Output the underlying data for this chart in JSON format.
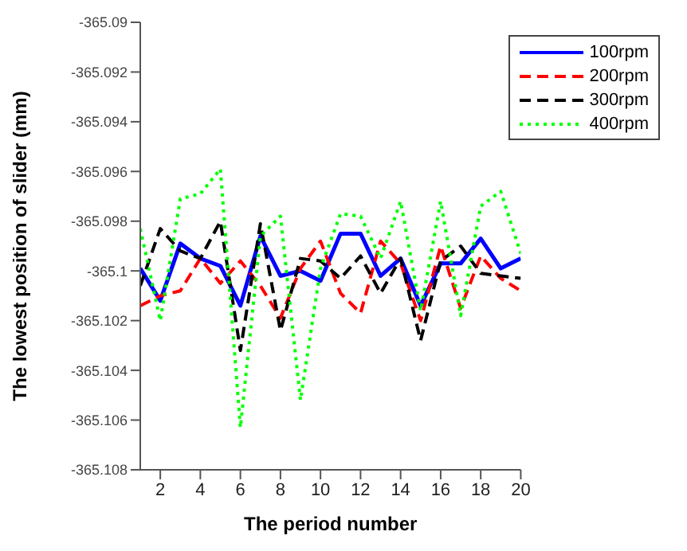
{
  "chart_data": {
    "type": "line",
    "xlabel": "The period number",
    "ylabel": "The lowest position of slider (mm)",
    "x": [
      1,
      2,
      3,
      4,
      5,
      6,
      7,
      8,
      9,
      10,
      11,
      12,
      13,
      14,
      15,
      16,
      17,
      18,
      19,
      20
    ],
    "xlim": [
      1,
      20
    ],
    "xticks": [
      2,
      4,
      6,
      8,
      10,
      12,
      14,
      16,
      18,
      20
    ],
    "ylim": [
      -365.108,
      -365.09
    ],
    "yticks": [
      -365.108,
      -365.106,
      -365.104,
      -365.102,
      -365.1,
      -365.098,
      -365.096,
      -365.094,
      -365.092,
      -365.09
    ],
    "grid": false,
    "legend": "top right",
    "marker": "none",
    "series": [
      {
        "name": "100rpm",
        "color": "#0000ff",
        "line_style": "solid",
        "values": [
          -365.0999,
          -365.1012,
          -365.0989,
          -365.0995,
          -365.0998,
          -365.1014,
          -365.0986,
          -365.1002,
          -365.1,
          -365.1004,
          -365.0985,
          -365.0985,
          -365.1002,
          -365.0995,
          -365.1014,
          -365.0997,
          -365.0997,
          -365.0987,
          -365.0999,
          -365.0995
        ]
      },
      {
        "name": "200rpm",
        "color": "#ff0000",
        "line_style": "dashed",
        "values": [
          -365.1014,
          -365.101,
          -365.1008,
          -365.0995,
          -365.1005,
          -365.0996,
          -365.1006,
          -365.1019,
          -365.0999,
          -365.0988,
          -365.1009,
          -365.1017,
          -365.0988,
          -365.0997,
          -365.102,
          -365.099,
          -365.1015,
          -365.0994,
          -365.1003,
          -365.1008
        ]
      },
      {
        "name": "300rpm",
        "color": "#000000",
        "line_style": "dashed",
        "values": [
          -365.1006,
          -365.0983,
          -365.0992,
          -365.0995,
          -365.098,
          -365.1032,
          -365.0981,
          -365.1024,
          -365.0995,
          -365.0996,
          -365.1003,
          -365.0994,
          -365.1009,
          -365.0995,
          -365.1028,
          -365.0996,
          -365.099,
          -365.1001,
          -365.1002,
          -365.1003
        ]
      },
      {
        "name": "400rpm",
        "color": "#00ff00",
        "line_style": "dotted",
        "values": [
          -365.0983,
          -365.102,
          -365.0971,
          -365.0969,
          -365.0959,
          -365.1063,
          -365.0986,
          -365.0978,
          -365.1052,
          -365.0999,
          -365.0977,
          -365.0978,
          -365.0995,
          -365.0972,
          -365.1016,
          -365.0972,
          -365.1018,
          -365.0974,
          -365.0968,
          -365.0993
        ]
      }
    ]
  }
}
